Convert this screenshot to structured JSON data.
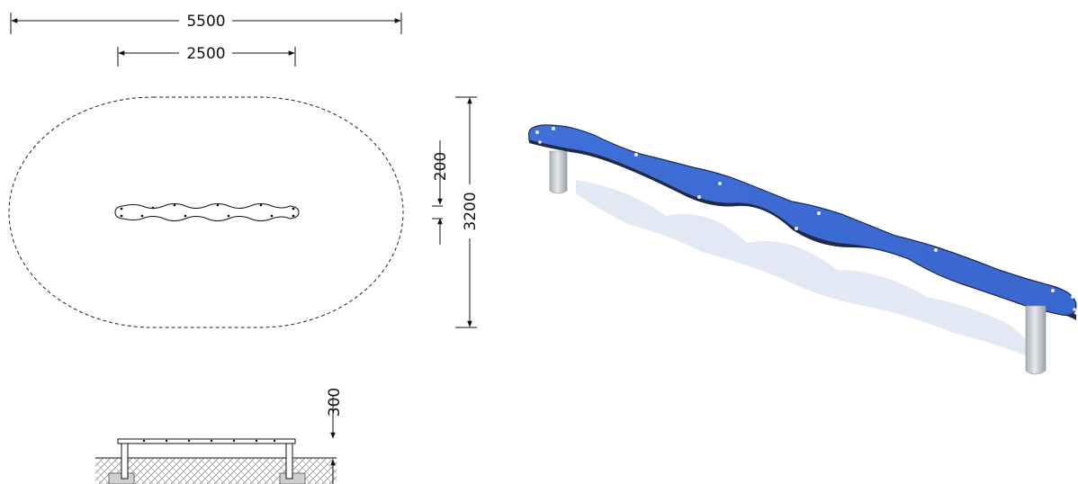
{
  "dimensions": {
    "overall_length": "5500",
    "beam_length": "2500",
    "zone_width": "3200",
    "beam_width": "200",
    "beam_height": "300"
  },
  "colors": {
    "beam_top": "#3d6bd6",
    "beam_edge": "#1f2a4a",
    "post": "#c8cdd3",
    "shadow": "#d6deef",
    "line": "#111111",
    "hatch": "#9a9a9a"
  }
}
